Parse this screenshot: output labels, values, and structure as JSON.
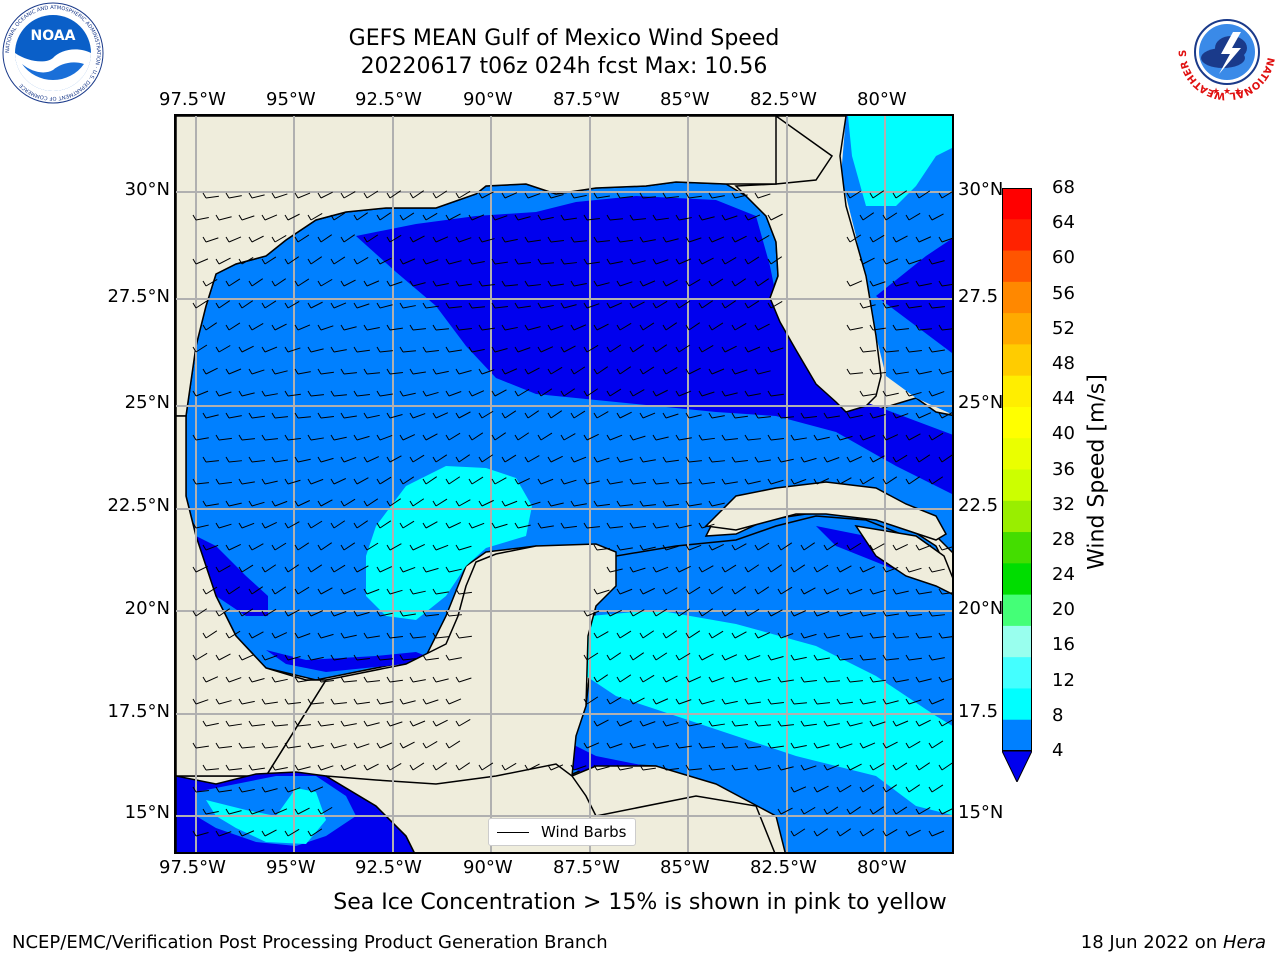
{
  "header": {
    "title_line1": "GEFS MEAN Gulf of Mexico Wind Speed",
    "title_line2": "20220617 t06z 024h fcst   Max: 10.56"
  },
  "logos": {
    "left": "NOAA",
    "left_ring": "NATIONAL OCEANIC AND ATMOSPHERIC ADMINISTRATION · U.S. DEPARTMENT OF COMMERCE",
    "right_ring": "NATIONAL WEATHER SERVICE"
  },
  "axes": {
    "lon_labels": [
      "97.5°W",
      "95°W",
      "92.5°W",
      "90°W",
      "87.5°W",
      "85°W",
      "82.5°W",
      "80°W"
    ],
    "lat_labels": [
      "30°N",
      "27.5°N",
      "25°N",
      "22.5°N",
      "20°N",
      "17.5°N",
      "15°N"
    ],
    "lat_labels_right": [
      "30°N",
      "27.5",
      "25°N",
      "22.5",
      "20°N",
      "17.5",
      "15°N"
    ]
  },
  "colorbar": {
    "title": "Wind Speed [m/s]",
    "ticks": [
      "68",
      "64",
      "60",
      "56",
      "52",
      "48",
      "44",
      "40",
      "36",
      "32",
      "28",
      "24",
      "20",
      "16",
      "12",
      "8",
      "4"
    ],
    "colors": [
      "#ff0000",
      "#ff2200",
      "#ff5500",
      "#ff8800",
      "#ffaa00",
      "#ffcc00",
      "#ffee00",
      "#ffff00",
      "#eaff00",
      "#ccff00",
      "#99ee00",
      "#44dd00",
      "#00dd00",
      "#44ff77",
      "#99ffee",
      "#44ffff",
      "#00ffff",
      "#0080ff"
    ],
    "under_color": "#0000ee"
  },
  "map": {
    "land_color": "#efeddc",
    "fill_colors": {
      "below_4": "#0000ee",
      "4_8": "#0080ff",
      "8_12": "#00ffff"
    }
  },
  "legend": {
    "label": "Wind Barbs"
  },
  "caption": "Sea Ice Concentration > 15% is shown in pink to yellow",
  "footer": {
    "left": "NCEP/EMC/Verification Post Processing Product Generation Branch",
    "right_date": "18 Jun 2022 on ",
    "right_machine": "Hera"
  }
}
